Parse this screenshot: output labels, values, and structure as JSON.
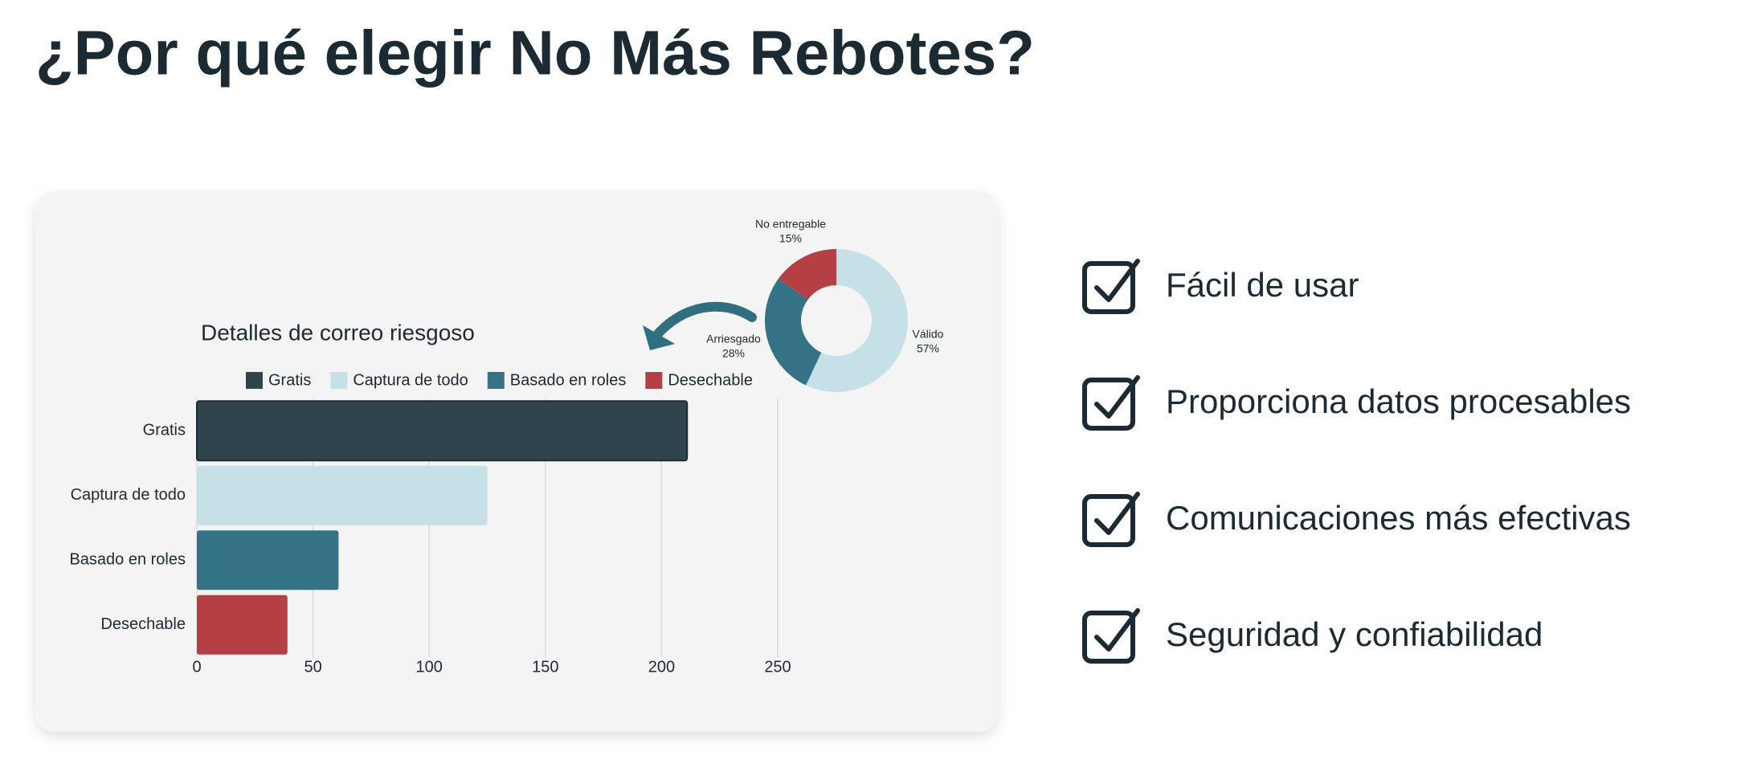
{
  "heading": "¿Por qué elegir No Más Rebotes?",
  "chart_data": [
    {
      "type": "donut",
      "categories": [
        "Válido",
        "Arriesgado",
        "No entregable"
      ],
      "values": [
        57,
        28,
        15
      ],
      "value_labels": [
        "57%",
        "28%",
        "15%"
      ],
      "colors": [
        "#c5e0e6",
        "#347385",
        "#b54043"
      ]
    },
    {
      "type": "hbar",
      "title": "Detalles de correo riesgoso",
      "categories": [
        "Gratis",
        "Captura de todo",
        "Basado en roles",
        "Desechable"
      ],
      "values": [
        211,
        125,
        61,
        39
      ],
      "colors": [
        "#2f444b",
        "#c5e0e6",
        "#347385",
        "#b54043"
      ],
      "xlim": [
        0,
        250
      ],
      "xticks": [
        0,
        50,
        100,
        150,
        200,
        250
      ],
      "grid": true,
      "legend": "top"
    }
  ],
  "features": [
    "Fácil de usar",
    "Proporciona datos procesables",
    "Comunicaciones más efectivas",
    "Seguridad y confiabilidad"
  ]
}
